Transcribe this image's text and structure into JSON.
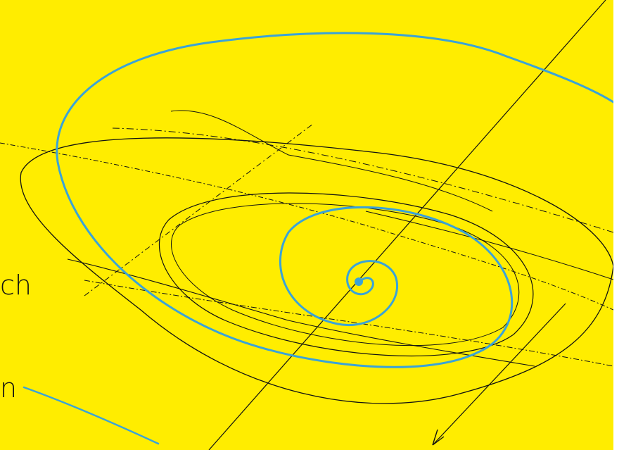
{
  "colors": {
    "background": "#ffed00",
    "ink_black": "#111111",
    "ink_blue": "#3aa3d8",
    "frame": "#ffffff"
  },
  "texts": {
    "fragment_one": "ch",
    "fragment_two": "n"
  }
}
